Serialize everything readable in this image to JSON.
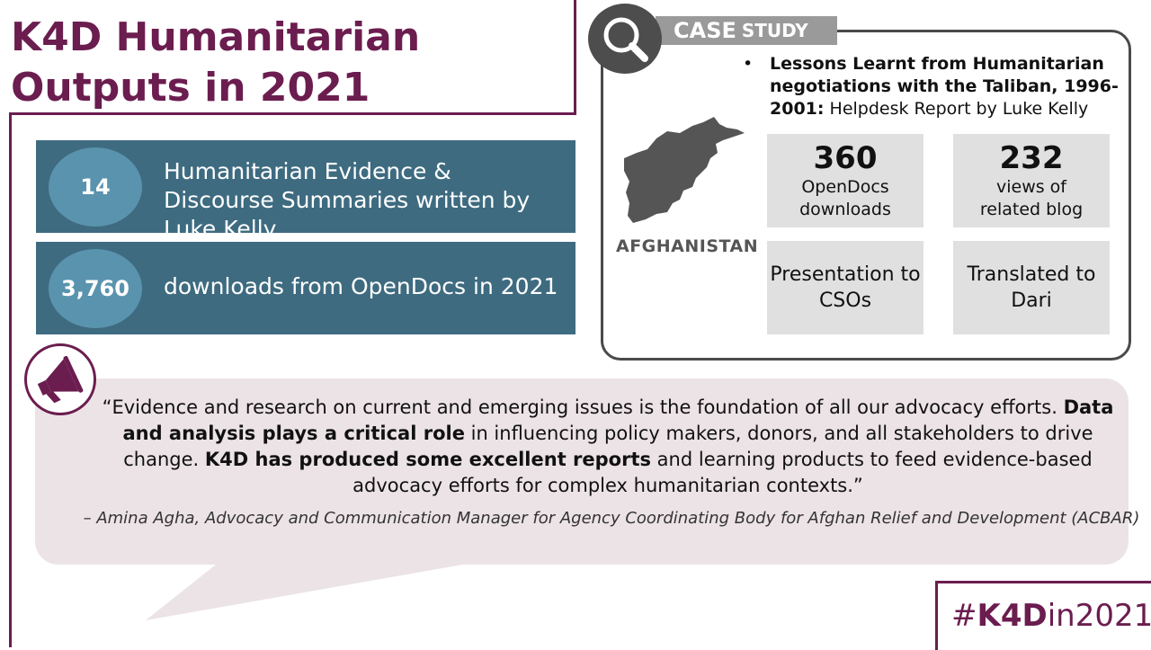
{
  "title": "K4D Humanitarian Outputs in 2021",
  "stats": [
    {
      "value": "14",
      "text": "Humanitarian Evidence & Discourse Summaries written by Luke Kelly"
    },
    {
      "value": "3,760",
      "text": "downloads from OpenDocs in 2021"
    }
  ],
  "case_study": {
    "tag_bold": "CASE",
    "tag_rest": "STUDY",
    "bullet": "•",
    "report_title": "Lessons Learnt from Humanitarian negotiations with the Taliban, 1996-2001:",
    "report_desc": "Helpdesk Report by Luke Kelly",
    "country": "AFGHANISTAN",
    "tiles": [
      {
        "num": "360",
        "label_line1": "OpenDocs",
        "label_line2": "downloads"
      },
      {
        "num": "232",
        "label_line1": "views of",
        "label_line2": "related blog"
      },
      {
        "line1": "Presentation to",
        "line2": "CSOs"
      },
      {
        "line1": "Translated to",
        "line2": "Dari"
      }
    ]
  },
  "quote": {
    "part1": "“Evidence and research on current and emerging issues is the foundation of all our advocacy efforts.",
    "bold1": "Data and analysis plays a critical role",
    "part2": " in influencing policy makers, donors, and all stakeholders to drive change. ",
    "bold2": "K4D has produced some excellent reports",
    "part3": " and learning products to feed evidence-based advocacy efforts for complex humanitarian contexts.”",
    "attribution": "– Amina Agha, Advocacy and Communication Manager for Agency Coordinating Body for Afghan Relief and Development (ACBAR)"
  },
  "hashtag": {
    "hash": "#",
    "bold": "K4D",
    "in": "in",
    "year": "2021"
  },
  "colors": {
    "brand": "#6b1d4f",
    "stat_bg": "#3e6b80",
    "stat_circle": "#5a93ae",
    "quote_bg": "#ece3e6"
  },
  "icons": [
    "search-icon",
    "megaphone-icon",
    "afghanistan-map-icon"
  ]
}
